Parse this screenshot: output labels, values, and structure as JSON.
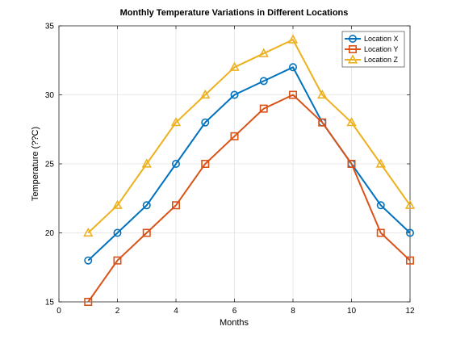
{
  "chart_data": {
    "type": "line",
    "title": "Monthly Temperature Variations in Different Locations",
    "xlabel": "Months",
    "ylabel": "Temperature (??C)",
    "xlim": [
      0,
      12
    ],
    "ylim": [
      15,
      35
    ],
    "xticks": [
      0,
      2,
      4,
      6,
      8,
      10,
      12
    ],
    "yticks": [
      15,
      20,
      25,
      30,
      35
    ],
    "grid": true,
    "legend_position": "top-right",
    "x": [
      1,
      2,
      3,
      4,
      5,
      6,
      7,
      8,
      9,
      10,
      11,
      12
    ],
    "series": [
      {
        "name": "Location X",
        "marker": "circle",
        "color": "#0072BD",
        "values": [
          18,
          20,
          22,
          25,
          28,
          30,
          31,
          32,
          28,
          25,
          22,
          20
        ]
      },
      {
        "name": "Location Y",
        "marker": "square",
        "color": "#D95319",
        "values": [
          15,
          18,
          20,
          22,
          25,
          27,
          29,
          30,
          28,
          25,
          20,
          18
        ]
      },
      {
        "name": "Location Z",
        "marker": "triangle",
        "color": "#EDB120",
        "values": [
          20,
          22,
          25,
          28,
          30,
          32,
          33,
          34,
          30,
          28,
          25,
          22
        ]
      }
    ]
  }
}
